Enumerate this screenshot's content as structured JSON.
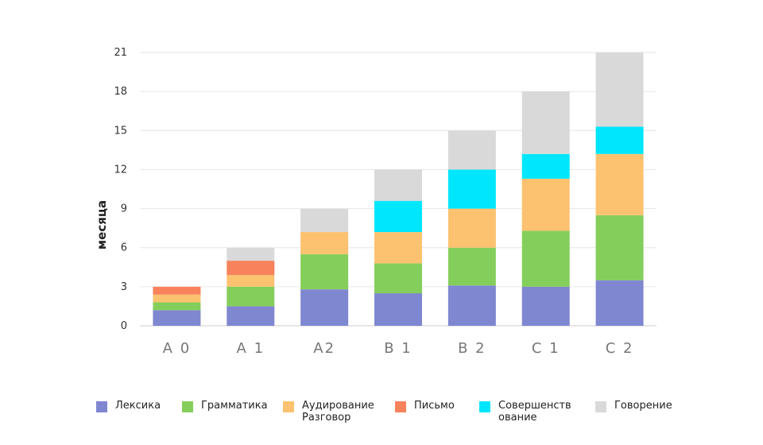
{
  "chart_data": {
    "type": "bar",
    "stacked": true,
    "title": "",
    "xlabel": "",
    "ylabel": "месяца",
    "ylim": [
      0,
      21
    ],
    "yticks": [
      "0",
      "3",
      "6",
      "9",
      "12",
      "15",
      "18",
      "21"
    ],
    "grid": true,
    "legend_position": "bottom",
    "categories": [
      "A 0",
      "A 1",
      "A2",
      "B 1",
      "B 2",
      "C 1",
      "C 2"
    ],
    "series": [
      {
        "name": "Лексика",
        "color": "#7f87d1",
        "values": [
          1.2,
          1.5,
          2.8,
          2.5,
          3.1,
          3.0,
          3.5
        ]
      },
      {
        "name": "Грамматика",
        "color": "#84cf5b",
        "values": [
          0.6,
          1.5,
          2.7,
          2.3,
          2.9,
          4.3,
          5.0
        ]
      },
      {
        "name": "Аудирование\nРазговор",
        "color": "#fdc26f",
        "values": [
          0.6,
          0.9,
          1.7,
          2.4,
          3.0,
          4.0,
          4.7
        ]
      },
      {
        "name": "Письмо",
        "color": "#f7825c",
        "values": [
          0.6,
          1.1,
          0,
          0,
          0,
          0,
          0
        ]
      },
      {
        "name": "Совершенств\nование",
        "color": "#00e6fd",
        "values": [
          0,
          0,
          0,
          2.4,
          3.0,
          1.9,
          2.1
        ]
      },
      {
        "name": "Говорение",
        "color": "#d9d9d9",
        "values": [
          0,
          1.0,
          1.8,
          2.4,
          3.0,
          4.8,
          5.7
        ]
      }
    ]
  }
}
